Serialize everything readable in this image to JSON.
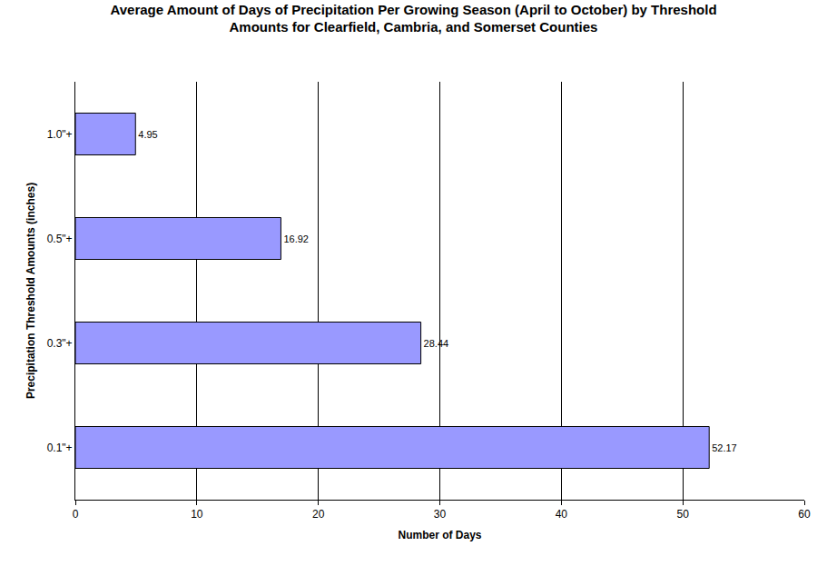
{
  "chart_data": {
    "type": "bar",
    "orientation": "horizontal",
    "title": "Average Amount of Days of Precipitation Per Growing Season (April to October) by Threshold\nAmounts for Clearfield, Cambria, and Somerset Counties",
    "x_label": "Number of Days",
    "y_label": "Precipitation Threshold Amounts (inches)",
    "categories": [
      "0.1\"+",
      "0.3\"+",
      "0.5\"+",
      "1.0\"+"
    ],
    "values": [
      52.17,
      28.44,
      16.92,
      4.95
    ],
    "color": "#9999ff",
    "xlim": [
      0,
      60
    ],
    "xticks": [
      0,
      10,
      20,
      30,
      40,
      50,
      60
    ],
    "grid": true,
    "data_labels": true
  }
}
